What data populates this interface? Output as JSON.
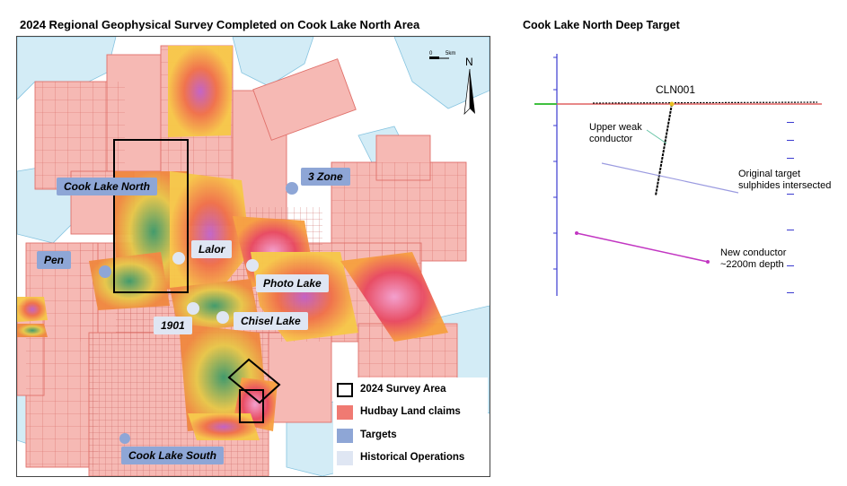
{
  "map": {
    "title": "2024 Regional Geophysical Survey Completed on Cook Lake North Area",
    "north_label": "N",
    "scale": {
      "start": "0",
      "end": "5km"
    },
    "targets": [
      {
        "id": "3-zone",
        "label": "3 Zone"
      },
      {
        "id": "cook-lake-north",
        "label": "Cook Lake North"
      },
      {
        "id": "pen",
        "label": "Pen"
      },
      {
        "id": "cook-lake-south",
        "label": "Cook Lake South"
      }
    ],
    "historical_operations": [
      {
        "id": "lalor",
        "label": "Lalor"
      },
      {
        "id": "photo-lake",
        "label": "Photo Lake"
      },
      {
        "id": "1901",
        "label": "1901"
      },
      {
        "id": "chisel-lake",
        "label": "Chisel Lake"
      }
    ],
    "legend": [
      {
        "label": "2024 Survey Area",
        "color": "#000000",
        "style": "outline"
      },
      {
        "label": "Hudbay Land claims",
        "color": "#f07a72",
        "style": "fill"
      },
      {
        "label": "Targets",
        "color": "#8ea6d6",
        "style": "fill"
      },
      {
        "label": "Historical Operations",
        "color": "#dfe6f3",
        "style": "fill"
      }
    ],
    "colors": {
      "claims": "#f6b9b4",
      "claim_lines": "#e0706a",
      "lakes": "#d3ecf6",
      "lake_edges": "#86c4e0"
    }
  },
  "section": {
    "title": "Cook Lake North Deep Target",
    "hole_label": "CLN001",
    "annotations": {
      "upper_weak": "Upper weak\nconductor",
      "original_target": "Original target\nsulphides intersected",
      "new_conductor": "New conductor\n~2200m depth"
    },
    "colors": {
      "axis": "#3b3bd0",
      "new_conductor": "#c236c2",
      "original": "#9b9be0",
      "surface": "#e06060"
    }
  }
}
